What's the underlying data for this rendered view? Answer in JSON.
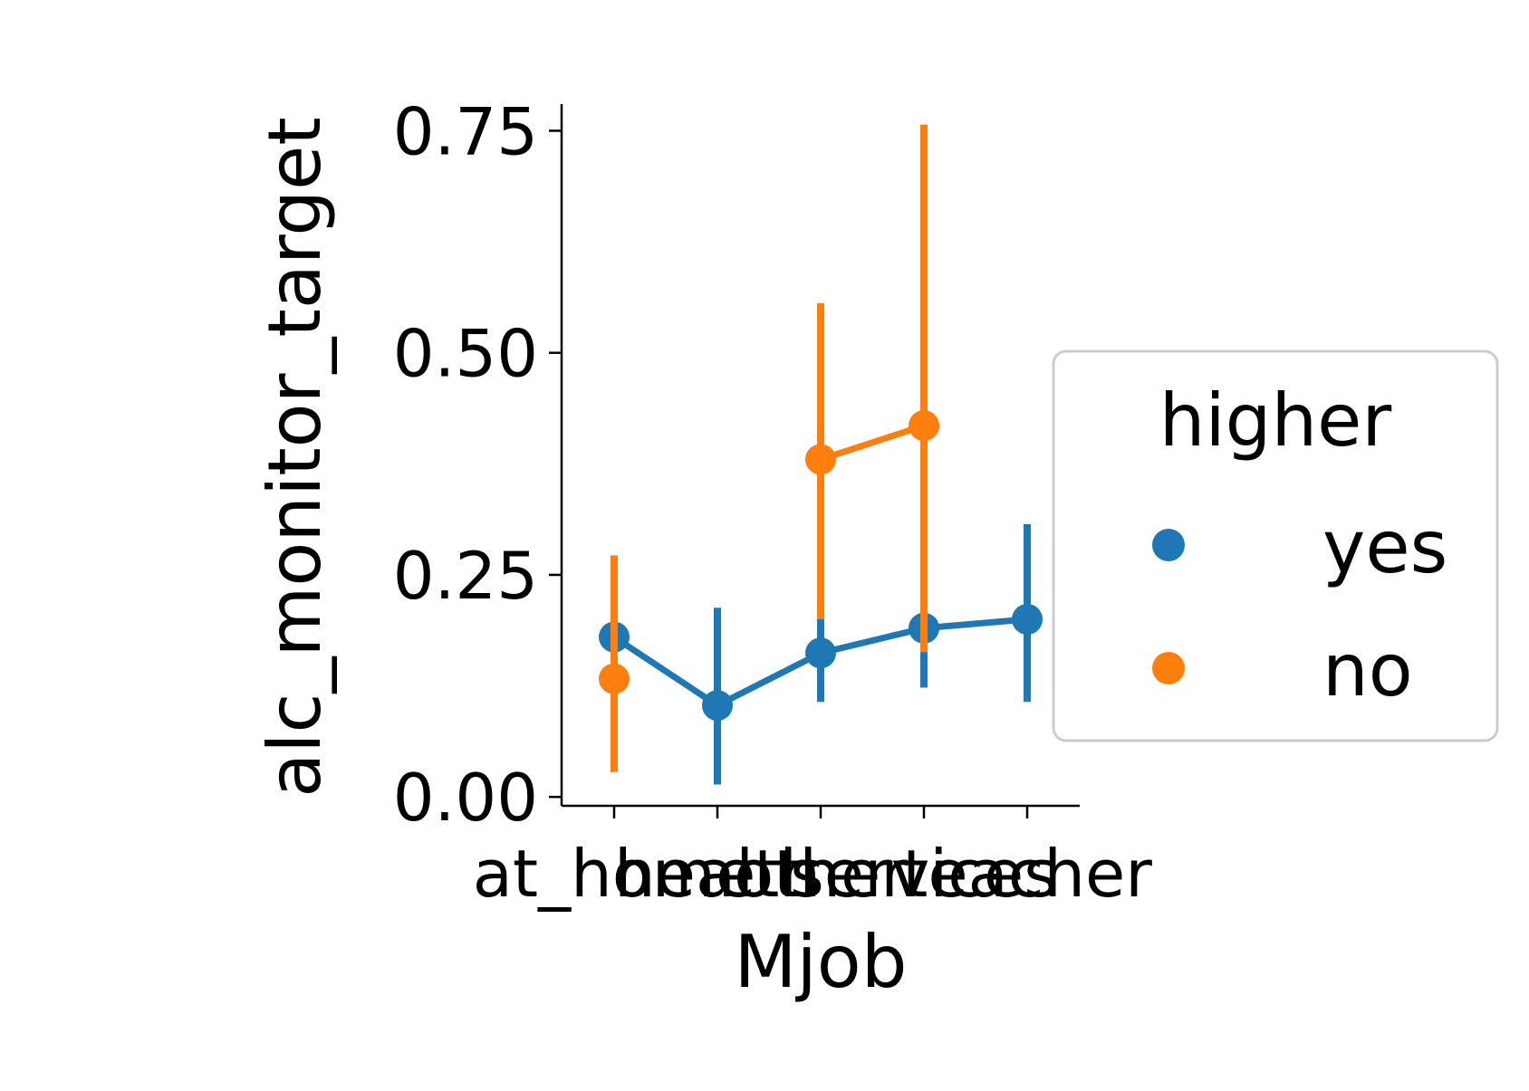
{
  "chart_data": {
    "type": "line",
    "xlabel": "Mjob",
    "ylabel": "alc_monitor_target",
    "categories": [
      "at_home",
      "health",
      "other",
      "services",
      "teacher"
    ],
    "ylim": [
      -0.01,
      0.78
    ],
    "yticks": [
      0.0,
      0.25,
      0.5,
      0.75
    ],
    "ytick_labels": [
      "0.00",
      "0.25",
      "0.50",
      "0.75"
    ],
    "grid": false,
    "legend": {
      "title": "higher",
      "placement": "center-right"
    },
    "series": [
      {
        "name": "yes",
        "color": "#1f77b4",
        "values": [
          0.18,
          0.103,
          0.162,
          0.19,
          0.2
        ],
        "ci_low": [
          0.15,
          0.014,
          0.107,
          0.123,
          0.107
        ],
        "ci_high": [
          0.212,
          0.213,
          0.2,
          0.262,
          0.307
        ]
      },
      {
        "name": "no",
        "color": "#ff7f0e",
        "values": [
          0.133,
          null,
          0.38,
          0.418,
          null
        ],
        "ci_low": [
          0.028,
          null,
          0.2,
          0.163,
          null
        ],
        "ci_high": [
          0.272,
          null,
          0.556,
          0.757,
          null
        ]
      }
    ]
  }
}
